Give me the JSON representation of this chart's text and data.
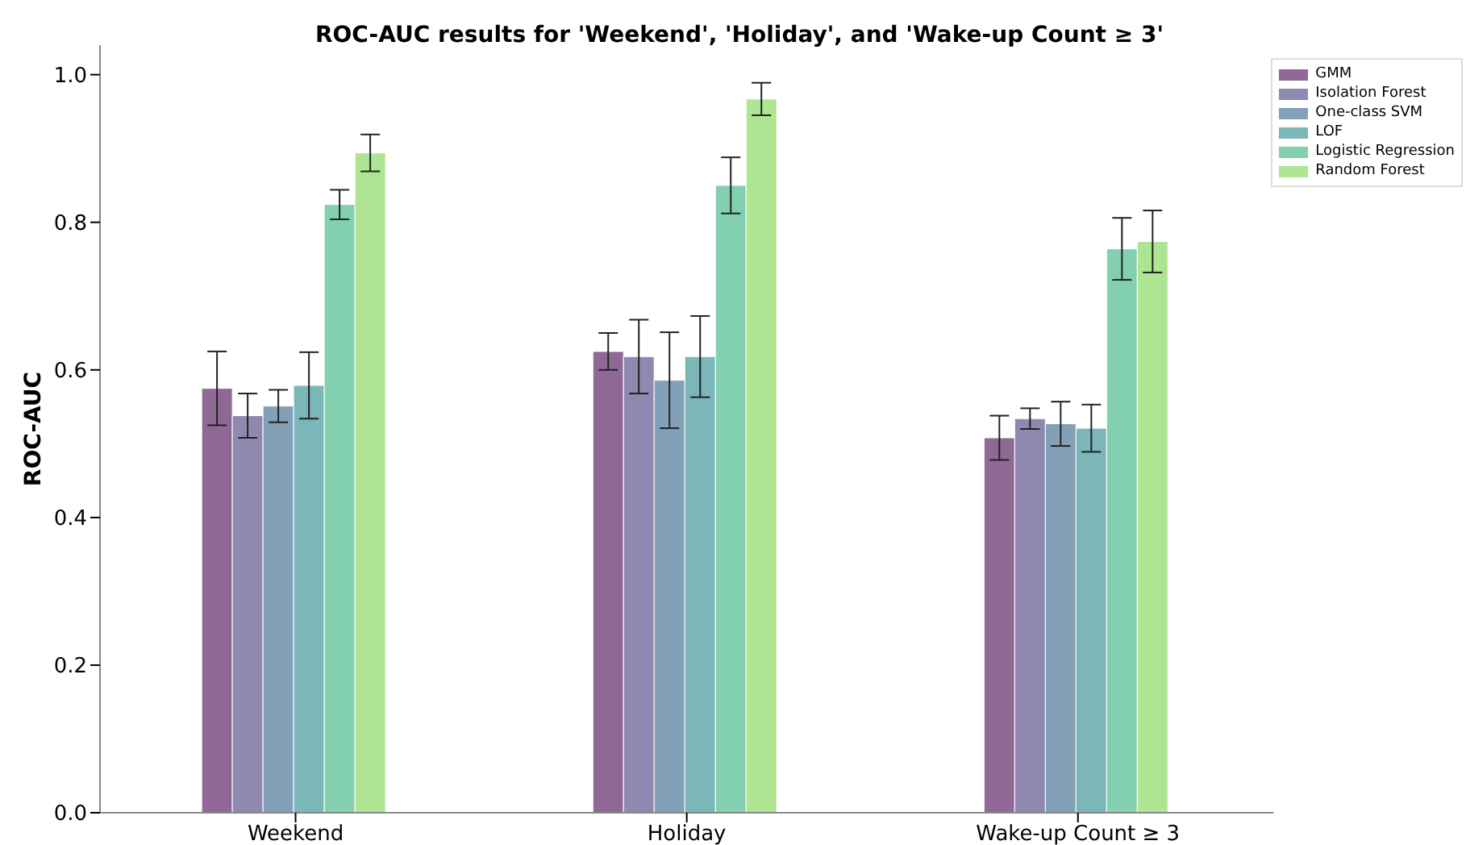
{
  "chart_data": {
    "type": "bar",
    "title": "ROC-AUC results for 'Weekend', 'Holiday', and 'Wake-up Count ≥ 3'",
    "ylabel": "ROC-AUC",
    "categories": [
      "Weekend",
      "Holiday",
      "Wake-up Count ≥ 3"
    ],
    "series": [
      {
        "name": "GMM",
        "color": "#8f6896",
        "values": [
          0.575,
          0.625,
          0.508
        ],
        "errors": [
          0.05,
          0.025,
          0.03
        ]
      },
      {
        "name": "Isolation Forest",
        "color": "#8f88b0",
        "values": [
          0.538,
          0.618,
          0.534
        ],
        "errors": [
          0.03,
          0.05,
          0.014
        ]
      },
      {
        "name": "One-class SVM",
        "color": "#82a0b8",
        "values": [
          0.551,
          0.586,
          0.527
        ],
        "errors": [
          0.022,
          0.065,
          0.03
        ]
      },
      {
        "name": "LOF",
        "color": "#7bb6b8",
        "values": [
          0.579,
          0.618,
          0.521
        ],
        "errors": [
          0.045,
          0.055,
          0.032
        ]
      },
      {
        "name": "Logistic Regression",
        "color": "#82d0b0",
        "values": [
          0.824,
          0.85,
          0.764
        ],
        "errors": [
          0.02,
          0.038,
          0.042
        ]
      },
      {
        "name": "Random Forest",
        "color": "#aee592",
        "values": [
          0.894,
          0.967,
          0.774
        ],
        "errors": [
          0.025,
          0.022,
          0.042
        ]
      }
    ],
    "ylim": [
      0,
      1.04
    ],
    "yticks": [
      {
        "value": 0,
        "label": "0.0"
      },
      0.2,
      0.4,
      0.6,
      0.8,
      {
        "value": 1,
        "label": "1.0"
      }
    ],
    "grid": false,
    "legend": "top right"
  }
}
